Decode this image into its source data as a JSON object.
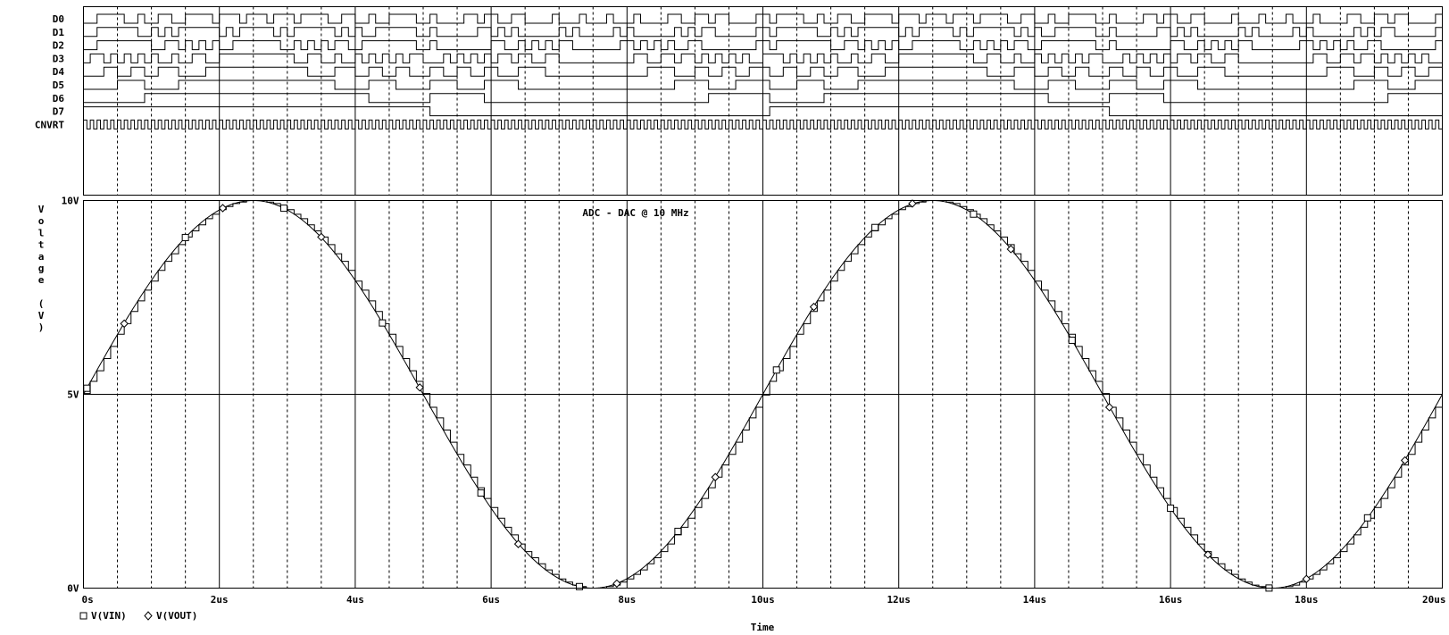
{
  "chart_data": [
    {
      "type": "line",
      "panel": "digital",
      "signals": [
        "D0",
        "D1",
        "D2",
        "D3",
        "D4",
        "D5",
        "D6",
        "D7",
        "CNVRT"
      ],
      "x_range_us": [
        0,
        20
      ],
      "clock_period_us": 0.1,
      "adc_bits": 8,
      "adc_full_scale_v": 10
    },
    {
      "type": "line",
      "panel": "analog",
      "title": "ADC - DAC @ 10 MHz",
      "xlabel": "Time",
      "ylabel": "Voltage (V)",
      "x_ticks": [
        "0s",
        "2us",
        "4us",
        "6us",
        "8us",
        "10us",
        "12us",
        "14us",
        "16us",
        "18us",
        "20us"
      ],
      "x_tick_values_us": [
        0,
        2,
        4,
        6,
        8,
        10,
        12,
        14,
        16,
        18,
        20
      ],
      "y_ticks": [
        "0V",
        "5V",
        "10V"
      ],
      "y_tick_values_v": [
        0,
        5,
        10
      ],
      "xlim_us": [
        0,
        20
      ],
      "ylim_v": [
        0,
        10
      ],
      "grid": "major solid, minor dashed",
      "legend": "bottom-left",
      "series": [
        {
          "name": "V(VIN)",
          "marker": "square",
          "waveform": "sine",
          "offset_v": 5,
          "amplitude_v": 5,
          "period_us": 10,
          "phase_deg": 0
        },
        {
          "name": "V(VOUT)",
          "marker": "diamond",
          "waveform": "staircase",
          "sample_period_us": 0.1,
          "source": "V(VIN)"
        }
      ]
    }
  ]
}
